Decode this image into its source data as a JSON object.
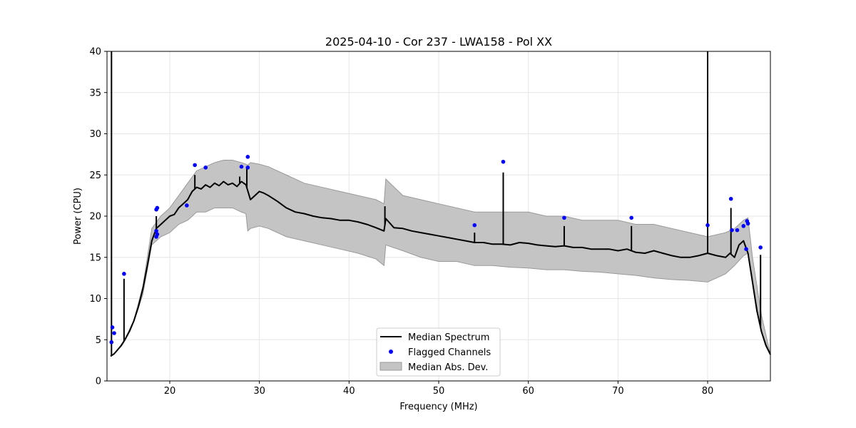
{
  "chart_data": {
    "type": "line",
    "title": "2025-04-10 - Cor 237 - LWA158 - Pol XX",
    "xlabel": "Frequency (MHz)",
    "ylabel": "Power (CPU)",
    "xlim": [
      13.0,
      87.0
    ],
    "ylim": [
      0,
      40
    ],
    "xticks": [
      20,
      30,
      40,
      50,
      60,
      70,
      80
    ],
    "xtick_labels": [
      "20",
      "30",
      "40",
      "50",
      "60",
      "70",
      "80"
    ],
    "yticks": [
      0,
      5,
      10,
      15,
      20,
      25,
      30,
      35,
      40
    ],
    "ytick_labels": [
      "0",
      "5",
      "10",
      "15",
      "20",
      "25",
      "30",
      "35",
      "40"
    ],
    "grid": true,
    "legend_position": "lower-center",
    "legend": [
      "Median Spectrum",
      "Flagged Channels",
      "Median Abs. Dev."
    ],
    "colors": {
      "median": "#000000",
      "flagged": "#0000ff",
      "mad_fill": "#c4c4c4",
      "mad_edge": "#999999",
      "grid": "#e6e6e6"
    },
    "median_spectrum": {
      "x": [
        13.4,
        13.8,
        14.2,
        14.6,
        15.0,
        15.5,
        16.0,
        16.5,
        17.0,
        17.5,
        18.0,
        18.5,
        19.0,
        19.5,
        20.0,
        20.5,
        21.0,
        21.5,
        22.0,
        22.5,
        23.0,
        23.5,
        24.0,
        24.5,
        25.0,
        25.5,
        26.0,
        26.5,
        27.0,
        27.5,
        28.0,
        28.5,
        29.0,
        29.5,
        30.0,
        30.5,
        31.0,
        32.0,
        33.0,
        34.0,
        35.0,
        36.0,
        37.0,
        38.0,
        39.0,
        40.0,
        41.0,
        42.0,
        43.0,
        43.9,
        44.1,
        45.0,
        46.0,
        47.0,
        48.0,
        49.0,
        50.0,
        51.0,
        52.0,
        53.0,
        54.0,
        55.0,
        56.0,
        57.0,
        58.0,
        59.0,
        60.0,
        61.0,
        62.0,
        63.0,
        64.0,
        65.0,
        66.0,
        67.0,
        68.0,
        69.0,
        70.0,
        71.0,
        72.0,
        73.0,
        74.0,
        75.0,
        76.0,
        77.0,
        78.0,
        79.0,
        80.0,
        81.0,
        82.0,
        82.5,
        83.0,
        83.5,
        84.0,
        84.5,
        85.0,
        85.5,
        86.0,
        86.5,
        87.0
      ],
      "y": [
        3.0,
        3.3,
        3.8,
        4.3,
        5.0,
        6.0,
        7.3,
        9.0,
        11.2,
        14.0,
        17.0,
        18.5,
        19.0,
        19.5,
        20.0,
        20.2,
        21.0,
        21.5,
        22.0,
        23.0,
        23.5,
        23.3,
        23.8,
        23.5,
        24.0,
        23.7,
        24.2,
        23.8,
        24.0,
        23.6,
        24.2,
        23.8,
        22.0,
        22.5,
        23.0,
        22.8,
        22.5,
        21.8,
        21.0,
        20.5,
        20.3,
        20.0,
        19.8,
        19.7,
        19.5,
        19.5,
        19.3,
        19.0,
        18.6,
        18.2,
        19.7,
        18.6,
        18.5,
        18.2,
        18.0,
        17.8,
        17.6,
        17.4,
        17.2,
        17.0,
        16.8,
        16.8,
        16.6,
        16.6,
        16.5,
        16.8,
        16.7,
        16.5,
        16.4,
        16.3,
        16.4,
        16.2,
        16.2,
        16.0,
        16.0,
        16.0,
        15.8,
        16.0,
        15.6,
        15.5,
        15.8,
        15.5,
        15.2,
        15.0,
        15.0,
        15.2,
        15.5,
        15.2,
        15.0,
        15.5,
        15.0,
        16.5,
        17.0,
        15.5,
        12.0,
        8.5,
        6.0,
        4.3,
        3.2
      ]
    },
    "median_spikes": [
      {
        "x": 13.5,
        "y_top": 40.0
      },
      {
        "x": 14.9,
        "y_top": 12.4
      },
      {
        "x": 18.5,
        "y_top": 20.0
      },
      {
        "x": 22.8,
        "y_top": 25.0
      },
      {
        "x": 27.8,
        "y_top": 24.8
      },
      {
        "x": 28.6,
        "y_top": 25.8
      },
      {
        "x": 44.0,
        "y_top": 21.2
      },
      {
        "x": 54.0,
        "y_top": 18.0
      },
      {
        "x": 57.2,
        "y_top": 25.3
      },
      {
        "x": 64.0,
        "y_top": 18.8
      },
      {
        "x": 71.5,
        "y_top": 18.8
      },
      {
        "x": 80.0,
        "y_top": 40.0
      },
      {
        "x": 82.6,
        "y_top": 21.0
      },
      {
        "x": 85.9,
        "y_top": 15.3
      }
    ],
    "mad_band": {
      "x": [
        13.4,
        14.0,
        15.0,
        16.0,
        17.0,
        18.0,
        19.0,
        20.0,
        21.0,
        22.0,
        23.0,
        24.0,
        25.0,
        26.0,
        27.0,
        28.0,
        28.5,
        28.7,
        29.0,
        30.0,
        31.0,
        32.0,
        33.0,
        35.0,
        37.0,
        39.0,
        41.0,
        43.0,
        43.9,
        44.1,
        46.0,
        48.0,
        50.0,
        52.0,
        54.0,
        56.0,
        58.0,
        60.0,
        62.0,
        64.0,
        66.0,
        68.0,
        70.0,
        72.0,
        74.0,
        76.0,
        78.0,
        80.0,
        82.0,
        83.0,
        84.0,
        84.5,
        85.0,
        86.0,
        87.0
      ],
      "lower": [
        3.0,
        3.5,
        4.9,
        7.2,
        10.5,
        16.5,
        17.5,
        18.0,
        19.0,
        19.5,
        20.5,
        20.5,
        21.0,
        21.0,
        21.0,
        20.5,
        20.3,
        18.2,
        18.5,
        18.8,
        18.5,
        18.0,
        17.5,
        17.0,
        16.5,
        16.0,
        15.5,
        14.8,
        14.0,
        16.5,
        15.8,
        15.0,
        14.5,
        14.5,
        14.0,
        14.0,
        13.8,
        13.7,
        13.5,
        13.5,
        13.3,
        13.2,
        13.0,
        12.8,
        12.5,
        12.3,
        12.2,
        12.0,
        13.0,
        14.0,
        15.2,
        15.5,
        12.0,
        6.0,
        3.2
      ],
      "upper": [
        3.0,
        3.5,
        5.1,
        7.4,
        11.5,
        18.5,
        20.0,
        21.0,
        22.5,
        24.0,
        25.5,
        26.0,
        26.5,
        26.8,
        26.8,
        26.5,
        26.3,
        26.2,
        26.5,
        26.3,
        26.0,
        25.5,
        25.0,
        24.0,
        23.5,
        23.0,
        22.5,
        22.0,
        21.5,
        24.5,
        22.5,
        22.0,
        21.5,
        21.0,
        20.5,
        20.5,
        20.5,
        20.5,
        20.0,
        20.0,
        19.5,
        19.5,
        19.5,
        19.0,
        19.0,
        18.5,
        18.0,
        17.5,
        18.0,
        18.5,
        19.5,
        19.8,
        15.0,
        8.0,
        3.2
      ]
    },
    "flagged_channels": {
      "x": [
        13.6,
        13.8,
        13.5,
        14.9,
        18.5,
        18.6,
        18.5,
        18.6,
        18.5,
        21.9,
        22.8,
        24.0,
        28.0,
        28.7,
        28.7,
        54.0,
        57.2,
        64.0,
        71.5,
        80.0,
        82.6,
        82.7,
        83.3,
        84.0,
        84.3,
        84.4,
        84.5,
        85.9
      ],
      "y": [
        6.5,
        5.8,
        4.7,
        13.0,
        20.8,
        21.0,
        18.2,
        17.8,
        17.5,
        21.3,
        26.2,
        25.9,
        26.0,
        27.2,
        25.9,
        18.9,
        26.6,
        19.8,
        19.8,
        18.9,
        22.1,
        18.3,
        18.3,
        18.8,
        16.0,
        19.4,
        19.1,
        16.2
      ]
    }
  }
}
